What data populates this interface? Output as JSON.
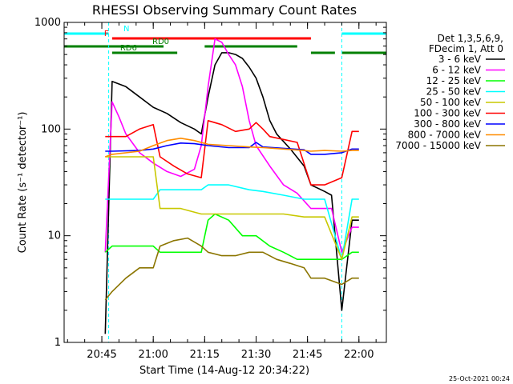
{
  "chart_data": {
    "type": "line",
    "title": "RHESSI Observing Summary Count Rates",
    "xlabel": "Start Time (14-Aug-12 20:34:22)",
    "ylabel": "Count Rate (s⁻¹ detector⁻¹)",
    "y_scale": "log",
    "ylim": [
      1,
      1000
    ],
    "xlim": [
      "20:34",
      "22:08"
    ],
    "x_ticks": [
      "20:45",
      "21:00",
      "21:15",
      "21:30",
      "21:45",
      "22:00"
    ],
    "y_ticks": [
      "1",
      "10",
      "100",
      "1000"
    ],
    "timestamp": "25-Oct-2021 00:24",
    "legend_position": "right",
    "legend_header": [
      "Det 1,3,5,6,9,",
      "FDecim 1, Att 0"
    ],
    "flags": [
      {
        "label": "N",
        "color": "#00ffff",
        "intervals": [
          [
            "20:34",
            "20:47"
          ],
          [
            "21:55",
            "22:08"
          ]
        ]
      },
      {
        "label": "F",
        "color": "#ff0000",
        "intervals": [
          [
            "20:48",
            "21:46"
          ]
        ]
      },
      {
        "label": "RD0",
        "color": "#008000",
        "intervals": [
          [
            "20:34",
            "21:03"
          ],
          [
            "21:15",
            "21:42"
          ]
        ]
      },
      {
        "label": "RD6",
        "color": "#008000",
        "intervals": [
          [
            "20:48",
            "21:07"
          ],
          [
            "21:46",
            "21:53"
          ],
          [
            "21:55",
            "22:08"
          ]
        ]
      }
    ],
    "series": [
      {
        "name": "3 - 6 keV",
        "color": "#000000",
        "x": [
          "20:46",
          "20:48",
          "20:52",
          "20:56",
          "21:00",
          "21:04",
          "21:08",
          "21:12",
          "21:14",
          "21:16",
          "21:18",
          "21:20",
          "21:22",
          "21:24",
          "21:26",
          "21:28",
          "21:30",
          "21:32",
          "21:34",
          "21:36",
          "21:40",
          "21:44",
          "21:46",
          "21:50",
          "21:52",
          "21:55",
          "21:58",
          "22:00"
        ],
        "values": [
          1.2,
          280,
          250,
          200,
          160,
          140,
          115,
          100,
          90,
          200,
          400,
          520,
          520,
          500,
          460,
          380,
          300,
          200,
          120,
          90,
          65,
          45,
          30,
          26,
          24,
          2,
          14,
          14
        ]
      },
      {
        "name": "6 - 12 keV",
        "color": "#ff00ff",
        "x": [
          "20:46",
          "20:48",
          "20:50",
          "20:52",
          "20:56",
          "21:00",
          "21:04",
          "21:08",
          "21:12",
          "21:14",
          "21:16",
          "21:18",
          "21:20",
          "21:22",
          "21:24",
          "21:26",
          "21:28",
          "21:30",
          "21:34",
          "21:38",
          "21:42",
          "21:46",
          "21:50",
          "21:52",
          "21:55",
          "21:58",
          "22:00"
        ],
        "values": [
          7,
          180,
          130,
          90,
          60,
          48,
          40,
          36,
          42,
          70,
          250,
          700,
          650,
          500,
          400,
          250,
          120,
          70,
          45,
          30,
          25,
          18,
          18,
          18,
          7,
          12,
          12
        ]
      },
      {
        "name": "12 - 25 keV",
        "color": "#00ff00",
        "x": [
          "20:46",
          "20:48",
          "20:56",
          "21:00",
          "21:02",
          "21:08",
          "21:12",
          "21:14",
          "21:16",
          "21:18",
          "21:22",
          "21:26",
          "21:30",
          "21:34",
          "21:38",
          "21:42",
          "21:46",
          "21:50",
          "21:55",
          "21:58",
          "22:00"
        ],
        "values": [
          7,
          8,
          8,
          8,
          7,
          7,
          7,
          7,
          14,
          16,
          14,
          10,
          10,
          8,
          7,
          6,
          6,
          6,
          6,
          7,
          7
        ]
      },
      {
        "name": "25 - 50 keV",
        "color": "#00ffff",
        "x": [
          "20:46",
          "20:48",
          "20:56",
          "21:00",
          "21:02",
          "21:08",
          "21:14",
          "21:16",
          "21:22",
          "21:28",
          "21:32",
          "21:38",
          "21:44",
          "21:46",
          "21:50",
          "21:55",
          "21:58",
          "22:00"
        ],
        "values": [
          22,
          22,
          22,
          22,
          27,
          27,
          27,
          30,
          30,
          27,
          26,
          24,
          22,
          22,
          22,
          6,
          22,
          22
        ]
      },
      {
        "name": "50 - 100 keV",
        "color": "#c8c800",
        "x": [
          "20:46",
          "20:48",
          "20:56",
          "21:00",
          "21:02",
          "21:08",
          "21:14",
          "21:16",
          "21:22",
          "21:28",
          "21:32",
          "21:38",
          "21:44",
          "21:46",
          "21:50",
          "21:55",
          "21:58",
          "22:00"
        ],
        "values": [
          55,
          55,
          55,
          55,
          18,
          18,
          16,
          16,
          16,
          16,
          16,
          16,
          15,
          15,
          15,
          6,
          15,
          15
        ]
      },
      {
        "name": "100 - 300 keV",
        "color": "#ff0000",
        "x": [
          "20:46",
          "20:48",
          "20:52",
          "20:56",
          "21:00",
          "21:02",
          "21:06",
          "21:10",
          "21:14",
          "21:16",
          "21:20",
          "21:24",
          "21:28",
          "21:30",
          "21:32",
          "21:34",
          "21:38",
          "21:42",
          "21:46",
          "21:50",
          "21:55",
          "21:58",
          "22:00"
        ],
        "values": [
          85,
          85,
          85,
          100,
          110,
          55,
          45,
          38,
          35,
          120,
          110,
          95,
          100,
          115,
          100,
          85,
          80,
          75,
          30,
          30,
          35,
          95,
          95
        ]
      },
      {
        "name": "300 - 800 keV",
        "color": "#0000ff",
        "x": [
          "20:46",
          "20:48",
          "20:56",
          "21:00",
          "21:04",
          "21:08",
          "21:12",
          "21:16",
          "21:22",
          "21:28",
          "21:30",
          "21:32",
          "21:38",
          "21:44",
          "21:46",
          "21:50",
          "21:55",
          "21:58",
          "22:00"
        ],
        "values": [
          62,
          62,
          63,
          65,
          70,
          74,
          73,
          70,
          67,
          67,
          75,
          68,
          66,
          64,
          58,
          58,
          60,
          65,
          65
        ]
      },
      {
        "name": "800 - 7000 keV",
        "color": "#ff8c00",
        "x": [
          "20:46",
          "20:48",
          "20:56",
          "21:00",
          "21:04",
          "21:08",
          "21:12",
          "21:16",
          "21:22",
          "21:28",
          "21:32",
          "21:38",
          "21:44",
          "21:46",
          "21:50",
          "21:55",
          "21:58",
          "22:00"
        ],
        "values": [
          55,
          58,
          62,
          70,
          78,
          82,
          78,
          72,
          70,
          68,
          67,
          65,
          63,
          62,
          63,
          62,
          63,
          63
        ]
      },
      {
        "name": "7000 - 15000 keV",
        "color": "#8b7500",
        "x": [
          "20:46",
          "20:48",
          "20:52",
          "20:56",
          "21:00",
          "21:02",
          "21:06",
          "21:10",
          "21:14",
          "21:16",
          "21:20",
          "21:24",
          "21:28",
          "21:32",
          "21:36",
          "21:40",
          "21:44",
          "21:46",
          "21:50",
          "21:55",
          "21:58",
          "22:00"
        ],
        "values": [
          2.5,
          3,
          4,
          5,
          5,
          8,
          9,
          9.5,
          8,
          7,
          6.5,
          6.5,
          7,
          7,
          6,
          5.5,
          5,
          4,
          4,
          3.5,
          4,
          4
        ]
      }
    ]
  }
}
